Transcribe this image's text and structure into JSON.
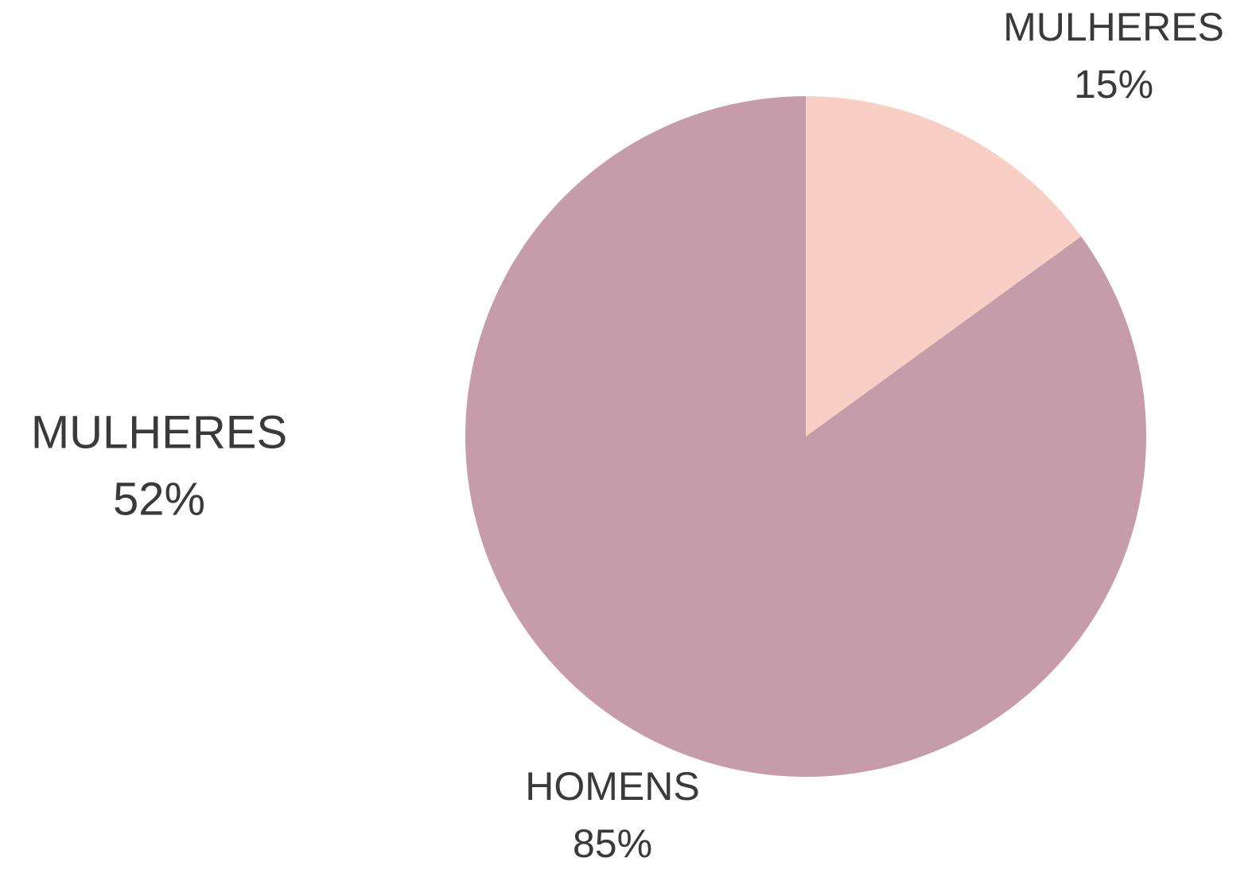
{
  "chart_data": {
    "type": "pie",
    "categories": [
      "MULHERES",
      "HOMENS"
    ],
    "values": [
      15,
      85
    ],
    "value_labels": [
      "15%",
      "85%"
    ],
    "colors": [
      "#f9cfc5",
      "#c69caa"
    ],
    "annotations": [
      "MULHERES",
      "52%"
    ]
  }
}
